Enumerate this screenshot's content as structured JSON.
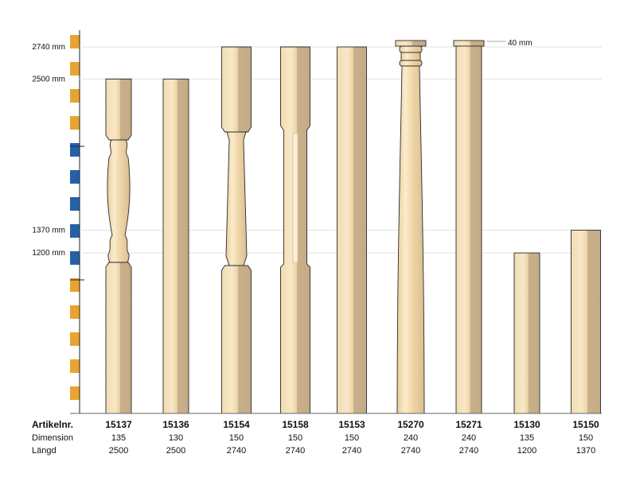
{
  "scale": {
    "marks": [
      {
        "label": "2740 mm",
        "value": 2740
      },
      {
        "label": "2500 mm",
        "value": 2500
      },
      {
        "label": "1370 mm",
        "value": 1370
      },
      {
        "label": "1200 mm",
        "value": 1200
      }
    ],
    "cap_note": "40 mm",
    "colors": {
      "orange": "#e8a433",
      "blue": "#2561a8",
      "white": "#ffffff"
    }
  },
  "table": {
    "row_labels": [
      "Artikelnr.",
      "Dimension",
      "Längd"
    ],
    "columns": [
      {
        "article": "15137",
        "dimension": "135",
        "length": "2500",
        "length_mm": 2500,
        "style": "baluster"
      },
      {
        "article": "15136",
        "dimension": "130",
        "length": "2500",
        "length_mm": 2500,
        "style": "plain"
      },
      {
        "article": "15154",
        "dimension": "150",
        "length": "2740",
        "length_mm": 2740,
        "style": "tapered"
      },
      {
        "article": "15158",
        "dimension": "150",
        "length": "2740",
        "length_mm": 2740,
        "style": "fluted"
      },
      {
        "article": "15153",
        "dimension": "150",
        "length": "2740",
        "length_mm": 2740,
        "style": "plain"
      },
      {
        "article": "15270",
        "dimension": "240",
        "length": "2740",
        "length_mm": 2740,
        "style": "column"
      },
      {
        "article": "15271",
        "dimension": "240",
        "length": "2740",
        "length_mm": 2740,
        "style": "capped"
      },
      {
        "article": "15130",
        "dimension": "135",
        "length": "1200",
        "length_mm": 1200,
        "style": "plain"
      },
      {
        "article": "15150",
        "dimension": "150",
        "length": "1370",
        "length_mm": 1370,
        "style": "plain"
      }
    ]
  },
  "colors": {
    "wood_light": "#f6e3bd",
    "wood_mid": "#ecd3a2",
    "wood_shadow": "#c9b08a",
    "outline": "#2b2b2b"
  }
}
